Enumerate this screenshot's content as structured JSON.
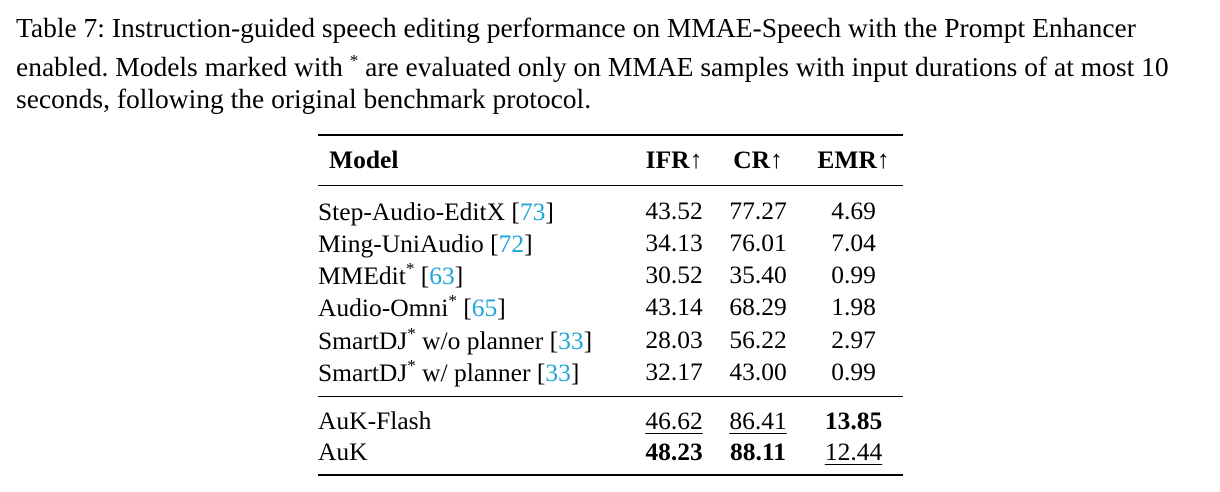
{
  "caption": {
    "text_before_star": "Table 7: Instruction-guided speech editing performance on MMAE-Speech with the Prompt Enhancer enabled. Models marked with ",
    "star": "*",
    "text_after_star": " are evaluated only on MMAE samples with input durations of at most 10 seconds, following the original benchmark protocol."
  },
  "table": {
    "headers": [
      "Model",
      "IFR↑",
      "CR↑",
      "EMR↑"
    ],
    "baselines": [
      {
        "name": "Step-Audio-EditX",
        "star": "",
        "suffix": "",
        "cite": "73",
        "ifr": "43.52",
        "cr": "77.27",
        "emr": "4.69"
      },
      {
        "name": "Ming-UniAudio",
        "star": "",
        "suffix": "",
        "cite": "72",
        "ifr": "34.13",
        "cr": "76.01",
        "emr": "7.04"
      },
      {
        "name": "MMEdit",
        "star": "*",
        "suffix": "",
        "cite": "63",
        "ifr": "30.52",
        "cr": "35.40",
        "emr": "0.99"
      },
      {
        "name": "Audio-Omni",
        "star": "*",
        "suffix": "",
        "cite": "65",
        "ifr": "43.14",
        "cr": "68.29",
        "emr": "1.98"
      },
      {
        "name": "SmartDJ",
        "star": "*",
        "suffix": " w/o planner",
        "cite": "33",
        "ifr": "28.03",
        "cr": "56.22",
        "emr": "2.97"
      },
      {
        "name": "SmartDJ",
        "star": "*",
        "suffix": " w/ planner",
        "cite": "33",
        "ifr": "32.17",
        "cr": "43.00",
        "emr": "0.99"
      }
    ],
    "ours": [
      {
        "name": "AuK-Flash",
        "ifr": "46.62",
        "cr": "86.41",
        "emr": "13.85"
      },
      {
        "name": "AuK",
        "ifr": "48.23",
        "cr": "88.11",
        "emr": "12.44"
      }
    ],
    "cite_color": "#1fa7d9"
  }
}
